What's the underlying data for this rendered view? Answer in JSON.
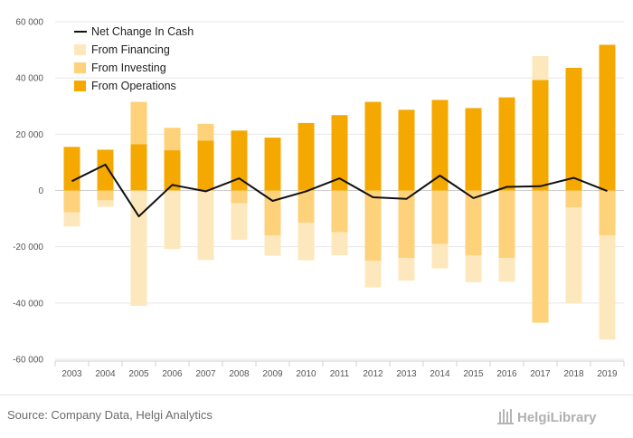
{
  "chart_data": {
    "type": "bar",
    "subtype": "stacked-bar-with-line",
    "title": "",
    "xlabel": "",
    "ylabel": "",
    "ylim": [
      -60000,
      60000
    ],
    "yticks": [
      60000,
      40000,
      20000,
      0,
      -20000,
      -40000,
      -60000
    ],
    "ytick_labels": [
      "60 000",
      "40 000",
      "20 000",
      "0",
      "-20 000",
      "-40 000",
      "-60 000"
    ],
    "grid": true,
    "legend_position": "top-left",
    "categories": [
      "2003",
      "2004",
      "2005",
      "2006",
      "2007",
      "2008",
      "2009",
      "2010",
      "2011",
      "2012",
      "2013",
      "2014",
      "2015",
      "2016",
      "2017",
      "2018",
      "2019"
    ],
    "series": [
      {
        "name": "From Operations",
        "kind": "bar",
        "color": "#f5a800",
        "values": [
          15500,
          14500,
          16500,
          14300,
          17700,
          21300,
          18800,
          24000,
          26800,
          31500,
          28700,
          32200,
          29300,
          33100,
          39300,
          43600,
          51800
        ]
      },
      {
        "name": "From Investing",
        "kind": "bar",
        "color": "#fdd27a",
        "values": [
          -7800,
          -3500,
          15000,
          8000,
          6000,
          -4500,
          -16000,
          -11500,
          -14800,
          -25000,
          -24000,
          -19000,
          -23000,
          -24000,
          -47000,
          -6000,
          -16000
        ]
      },
      {
        "name": "From Financing",
        "kind": "bar",
        "color": "#fde8bd",
        "values": [
          -5000,
          -2300,
          -41000,
          -20800,
          -24700,
          -13000,
          -7200,
          -13300,
          -8200,
          -9400,
          -8000,
          -8700,
          -9600,
          -8400,
          8500,
          -34000,
          -37000
        ]
      },
      {
        "name": "Net Change In Cash",
        "kind": "line",
        "color": "#111111",
        "values": [
          3300,
          9200,
          -9200,
          2000,
          -300,
          4300,
          -3700,
          -300,
          4300,
          -2400,
          -3000,
          5300,
          -2700,
          1300,
          1500,
          4500,
          -200
        ]
      }
    ],
    "legend": [
      "Net Change In Cash",
      "From Financing",
      "From Investing",
      "From Operations"
    ]
  },
  "footer": {
    "source": "Source: Company Data, Helgi Analytics",
    "logo_text": "HelgiLibrary"
  }
}
